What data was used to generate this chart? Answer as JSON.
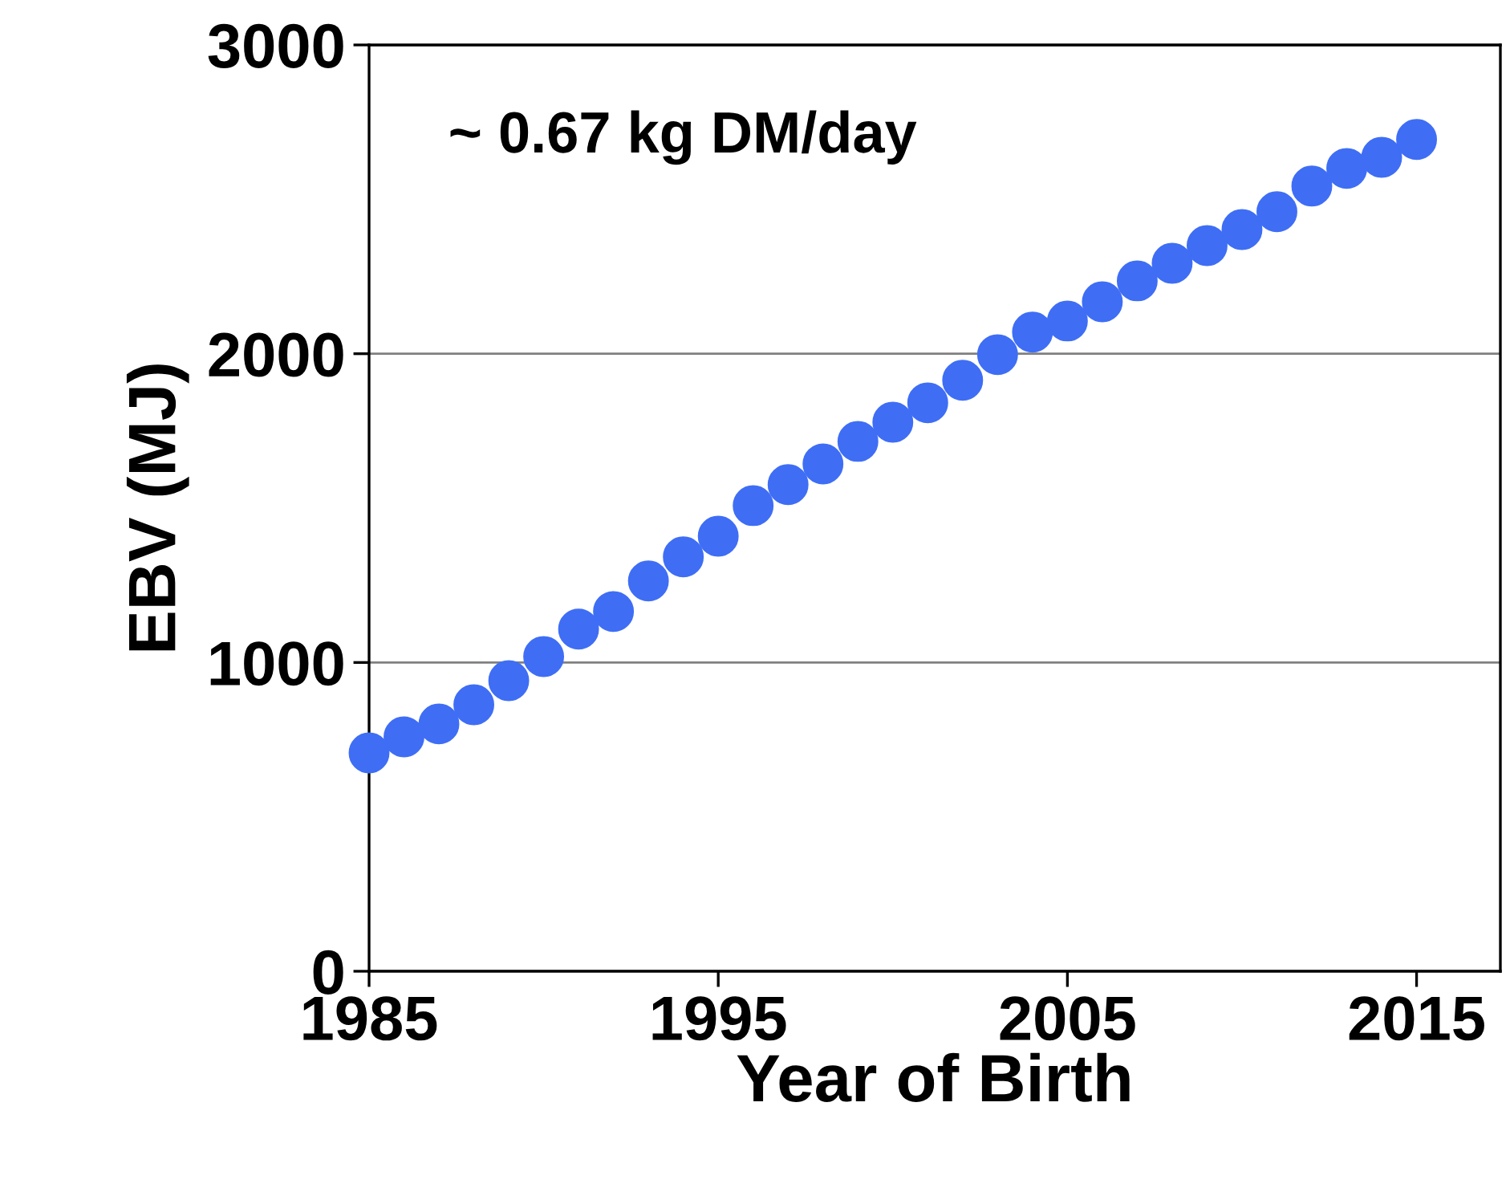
{
  "chart_data": {
    "type": "scatter",
    "xlabel": "Year of Birth",
    "ylabel": "EBV (MJ)",
    "annotations": [
      "~ 0.67 kg DM/day"
    ],
    "x": [
      1985,
      1986,
      1987,
      1988,
      1989,
      1990,
      1991,
      1992,
      1993,
      1994,
      1995,
      1996,
      1997,
      1998,
      1999,
      2000,
      2001,
      2002,
      2003,
      2004,
      2005,
      2006,
      2007,
      2008,
      2009,
      2010,
      2011,
      2012,
      2013,
      2014,
      2015
    ],
    "series": [
      {
        "color": "#3f6ef5",
        "values": [
          707,
          759,
          801,
          863,
          941,
          1019,
          1108,
          1165,
          1264,
          1342,
          1409,
          1508,
          1576,
          1643,
          1716,
          1778,
          1841,
          1914,
          1997,
          2070,
          2106,
          2168,
          2236,
          2293,
          2350,
          2402,
          2460,
          2543,
          2600,
          2636,
          2694
        ]
      }
    ],
    "xlim": [
      1985,
      2017.4
    ],
    "xticks": [
      1985,
      1995,
      2005,
      2015
    ],
    "ylim": [
      0,
      3000
    ],
    "yticks": [
      0,
      1000,
      2000,
      3000
    ],
    "grid": "y",
    "marker": "circle"
  }
}
